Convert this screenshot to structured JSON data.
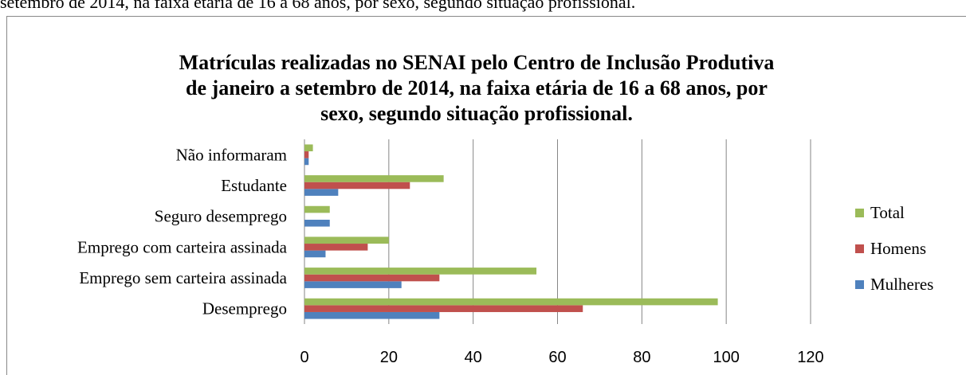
{
  "caption": "setembro de 2014, na faixa etária de 16 a 68 anos, por sexo, segundo situação profissional.",
  "chart_data": {
    "type": "barh",
    "title": [
      "Matrículas realizadas no SENAI pelo Centro de Inclusão Produtiva",
      "de janeiro a setembro de 2014, na faixa etária de 16 a 68 anos, por",
      "sexo, segundo situação profissional."
    ],
    "categories": [
      "Desemprego",
      "Emprego sem carteira assinada",
      "Emprego com carteira assinada",
      "Seguro desemprego",
      "Estudante",
      "Não informaram"
    ],
    "series": [
      {
        "name": "Mulheres",
        "color": "#4f81bd",
        "values": [
          32,
          23,
          5,
          6,
          8,
          1
        ]
      },
      {
        "name": "Homens",
        "color": "#c0504d",
        "values": [
          66,
          32,
          15,
          0,
          25,
          1
        ]
      },
      {
        "name": "Total",
        "color": "#9bbb59",
        "values": [
          98,
          55,
          20,
          6,
          33,
          2
        ]
      }
    ],
    "xlim": [
      0,
      120
    ],
    "xticks": [
      0,
      20,
      40,
      60,
      80,
      100,
      120
    ],
    "grid": true,
    "legend": "right"
  }
}
